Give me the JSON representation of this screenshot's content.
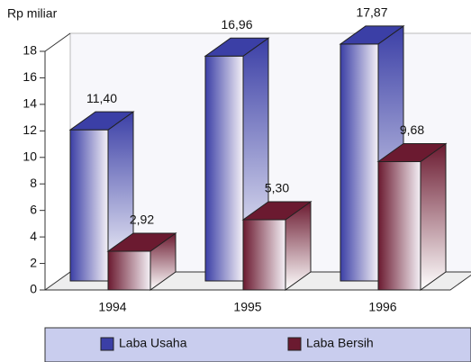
{
  "chart_data": {
    "type": "bar3d",
    "y_label": "Rp miliar",
    "categories": [
      "1994",
      "1995",
      "1996"
    ],
    "series": [
      {
        "name": "Laba Usaha",
        "color": "#3b3fa6",
        "values": [
          11.4,
          16.96,
          17.87
        ],
        "value_labels": [
          "11,40",
          "16,96",
          "17,87"
        ]
      },
      {
        "name": "Laba Bersih",
        "color": "#6b1a30",
        "values": [
          2.92,
          5.3,
          9.68
        ],
        "value_labels": [
          "2,92",
          "5,30",
          "9,68"
        ]
      }
    ],
    "ylim": [
      0,
      18
    ],
    "yticks": [
      0,
      2,
      4,
      6,
      8,
      10,
      12,
      14,
      16,
      18
    ]
  }
}
